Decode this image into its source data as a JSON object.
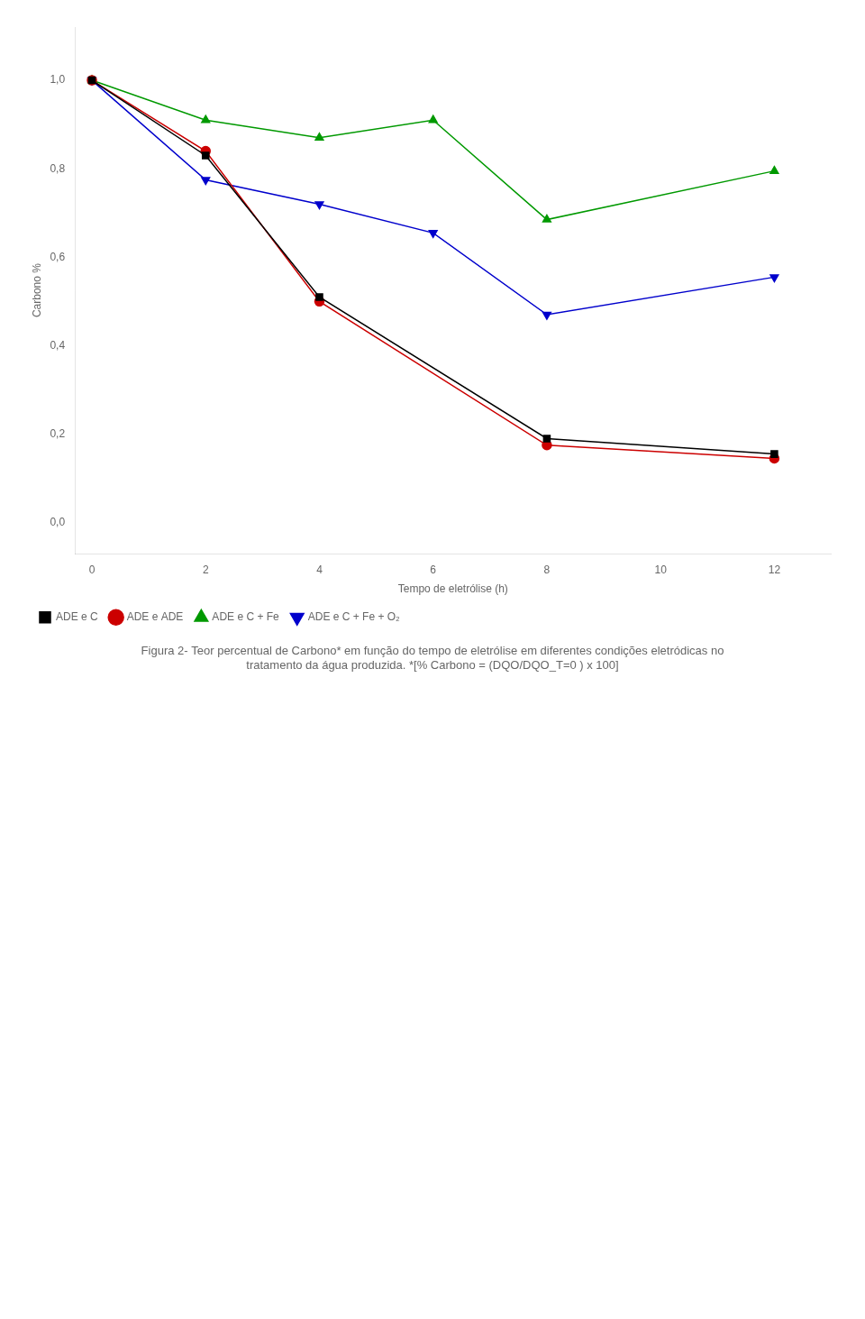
{
  "chart_data": {
    "type": "line",
    "title": [
      "Figura 2- Teor percentual de Carbono* em função do tempo de eletrólise em diferentes condições eletródicas no",
      "tratamento da água produzida. *[% Carbono = (DQO/DQO_T=0 ) x 100]"
    ],
    "xlabel": "Tempo de eletrólise (h)",
    "ylabel": "Carbono %",
    "series": [
      {
        "name": "ADE e C",
        "color": "#000000",
        "marker": "square",
        "x": [
          0,
          2,
          4,
          8,
          12
        ],
        "values": [
          1.0,
          0.83,
          0.51,
          0.19,
          0.155
        ]
      },
      {
        "name": "ADE e ADE",
        "color": "#cc0000",
        "marker": "circle",
        "x": [
          0,
          2,
          4,
          8,
          12
        ],
        "values": [
          1.0,
          0.84,
          0.5,
          0.175,
          0.145
        ]
      },
      {
        "name": "ADE e C + Fe",
        "color": "#009900",
        "marker": "triangle-up",
        "x": [
          0,
          2,
          4,
          6,
          8,
          12
        ],
        "values": [
          1.0,
          0.91,
          0.87,
          0.91,
          0.685,
          0.795
        ]
      },
      {
        "name": "ADE e C + Fe + O₂",
        "color": "#0000cc",
        "marker": "triangle-down",
        "x": [
          0,
          2,
          4,
          6,
          8,
          12
        ],
        "values": [
          1.0,
          0.775,
          0.72,
          0.655,
          0.47,
          0.555
        ]
      }
    ],
    "xlim": [
      -0.3,
      13
    ],
    "ylim": [
      -0.07,
      1.12
    ],
    "xticks": [
      0,
      2,
      4,
      6,
      8,
      10,
      12
    ],
    "yticks": [
      {
        "value": 0.0,
        "label": "0,0"
      },
      {
        "value": 0.2,
        "label": "0,2"
      },
      {
        "value": 0.4,
        "label": "0,4"
      },
      {
        "value": 0.6,
        "label": "0,6"
      },
      {
        "value": 0.8,
        "label": "0,8"
      },
      {
        "value": 1.0,
        "label": "1,0"
      }
    ],
    "legend": "lower left",
    "grid": false
  }
}
